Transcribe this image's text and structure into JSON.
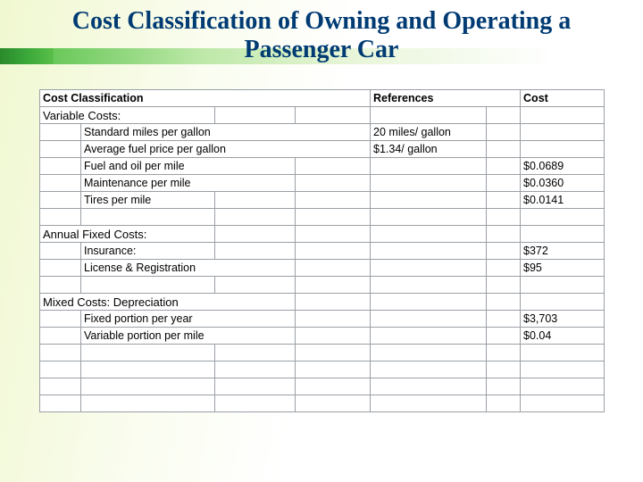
{
  "title_line1": "Cost Classification of Owning and Operating a",
  "title_line2": "Passenger Car",
  "headers": {
    "cost_classification": "Cost Classification",
    "references": "References",
    "cost": "Cost"
  },
  "sections": {
    "variable": "Variable Costs:",
    "fixed": "Annual Fixed Costs:",
    "mixed": "Mixed Costs: Depreciation"
  },
  "items": {
    "mpg": "Standard miles per gallon",
    "fuel_price": "Average fuel price per gallon",
    "fuel_oil": "Fuel and oil per mile",
    "maintenance": "Maintenance per mile",
    "tires": "Tires per mile",
    "insurance": "Insurance:",
    "license": "License & Registration",
    "fixed_portion": "Fixed portion per year",
    "variable_portion": "Variable portion per mile"
  },
  "refs": {
    "mpg": "20 miles/ gallon",
    "fuel_price": "$1.34/ gallon"
  },
  "costs": {
    "fuel_oil": "$0.0689",
    "maintenance": "$0.0360",
    "tires": "$0.0141",
    "insurance": "$372",
    "license": "$95",
    "fixed_portion": "$3,703",
    "variable_portion": "$0.04"
  },
  "colors": {
    "title": "#003b73",
    "border": "#9aa0a6",
    "accent_green_dark": "#2a8a2a",
    "accent_green_light": "#6ac85a"
  }
}
